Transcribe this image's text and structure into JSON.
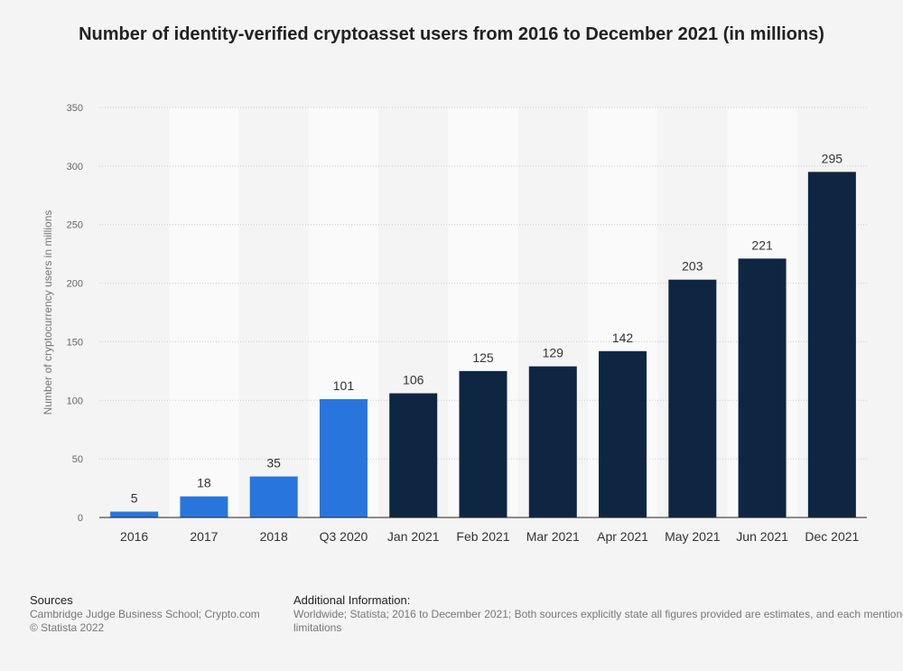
{
  "title": "Number of identity-verified cryptoasset users from 2016 to December 2021 (in millions)",
  "colors": {
    "light_bar": "#2876dd",
    "dark_bar": "#0f2642",
    "grid": "#cccccc",
    "band": "#fafafa",
    "background": "#f4f4f4"
  },
  "chart_data": {
    "type": "bar",
    "title": "Number of identity-verified cryptoasset users from 2016 to December 2021 (in millions)",
    "xlabel": "",
    "ylabel": "Number of cryptocurrency users in millions",
    "ylim": [
      0,
      350
    ],
    "yticks": [
      "0",
      "50",
      "100",
      "150",
      "200",
      "250",
      "300",
      "350"
    ],
    "grid": true,
    "categories": [
      "2016",
      "2017",
      "2018",
      "Q3 2020",
      "Jan 2021",
      "Feb 2021",
      "Mar 2021",
      "Apr 2021",
      "May 2021",
      "Jun 2021",
      "Dec 2021"
    ],
    "values": [
      5,
      18,
      35,
      101,
      106,
      125,
      129,
      142,
      203,
      221,
      295
    ],
    "bar_colors": [
      "#2876dd",
      "#2876dd",
      "#2876dd",
      "#2876dd",
      "#0f2642",
      "#0f2642",
      "#0f2642",
      "#0f2642",
      "#0f2642",
      "#0f2642",
      "#0f2642"
    ]
  },
  "footer": {
    "sources_heading": "Sources",
    "sources_line1": "Cambridge Judge Business School; Crypto.com",
    "sources_line2": "© Statista 2022",
    "additional_heading": "Additional Information:",
    "additional_line1": "Worldwide; Statista; 2016 to December 2021; Both sources explicitly state all figures provided are estimates, and each mentioned",
    "additional_line2": "limitations"
  }
}
